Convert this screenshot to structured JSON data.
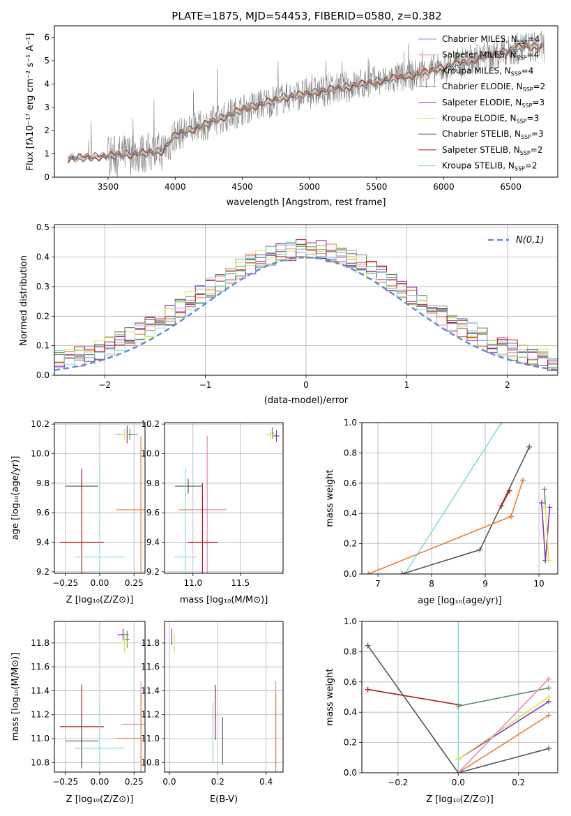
{
  "figure_title": "PLATE=1875, MJD=54453, FIBERID=0580, z=0.382",
  "colors": {
    "Chabrier MILES": "#7f93c8",
    "Salpeter MILES": "#e889b4",
    "Kroupa MILES": "#e67e30",
    "Chabrier ELODIE": "#5b8c5a",
    "Salpeter ELODIE": "#8e2fb5",
    "Kroupa ELODIE": "#d4e84a",
    "Chabrier STELIB": "#555555",
    "Salpeter STELIB": "#b21a1a",
    "Kroupa STELIB": "#85dada",
    "data": "#808080",
    "normal": "#5b8fd6"
  },
  "chart_data": [
    {
      "id": "spectrum",
      "type": "line",
      "xlabel": "wavelength [Angstrom, rest frame]",
      "ylabel": "Flux [f_λ 10^-17 erg cm^-2 s^-1 A^-1]",
      "xlim": [
        3100,
        6850
      ],
      "ylim": [
        0,
        6.5
      ],
      "xticks": [
        3500,
        4000,
        4500,
        5000,
        5500,
        6000,
        6500
      ],
      "yticks": [
        0,
        1,
        2,
        3,
        4,
        5,
        6
      ],
      "legend_position": "right",
      "legend": [
        {
          "label": "Chabrier MILES, N",
          "sub": "SSP",
          "tail": "=4",
          "model": "Chabrier MILES"
        },
        {
          "label": "Salpeter MILES, N",
          "sub": "SSP",
          "tail": "=4",
          "model": "Salpeter MILES"
        },
        {
          "label": "Kroupa MILES, N",
          "sub": "SSP",
          "tail": "=4",
          "model": "Kroupa MILES"
        },
        {
          "label": "Chabrier ELODIE, N",
          "sub": "SSP",
          "tail": "=2",
          "model": "Chabrier ELODIE"
        },
        {
          "label": "Salpeter ELODIE, N",
          "sub": "SSP",
          "tail": "=3",
          "model": "Salpeter ELODIE"
        },
        {
          "label": "Kroupa ELODIE, N",
          "sub": "SSP",
          "tail": "=3",
          "model": "Kroupa ELODIE"
        },
        {
          "label": "Chabrier STELIB, N",
          "sub": "SSP",
          "tail": "=3",
          "model": "Chabrier STELIB"
        },
        {
          "label": "Salpeter STELIB, N",
          "sub": "SSP",
          "tail": "=2",
          "model": "Salpeter STELIB"
        },
        {
          "label": "Kroupa STELIB, N",
          "sub": "SSP",
          "tail": "=2",
          "model": "Kroupa STELIB"
        }
      ],
      "continuum": {
        "x": [
          3200,
          3500,
          3700,
          3900,
          4000,
          4200,
          4500,
          4800,
          5000,
          5200,
          5500,
          5800,
          6000,
          6200,
          6400,
          6600,
          6750
        ],
        "y": [
          0.8,
          0.9,
          1.0,
          1.1,
          1.8,
          2.2,
          2.9,
          3.4,
          3.6,
          3.8,
          4.1,
          4.4,
          4.7,
          5.0,
          5.3,
          5.6,
          5.6
        ]
      }
    },
    {
      "id": "residuals",
      "type": "histogram",
      "xlabel": "(data-model)/error",
      "ylabel": "Normed distribution",
      "xlim": [
        -2.5,
        2.5
      ],
      "ylim": [
        0,
        0.51
      ],
      "xticks": [
        -2,
        -1,
        0,
        1,
        2
      ],
      "yticks": [
        0.0,
        0.1,
        0.2,
        0.3,
        0.4,
        0.5
      ],
      "legend_position": "upper right",
      "legend_label": "N(0,1)"
    },
    {
      "id": "age_vs_Z",
      "type": "scatter",
      "xlabel": "Z [log10(Z/Z⊙)]",
      "ylabel": "age  [log10(age/yr)]",
      "xlim": [
        -0.33,
        0.33
      ],
      "ylim": [
        9.19,
        10.21
      ],
      "xticks": [
        -0.25,
        0.0,
        0.25
      ],
      "yticks": [
        9.2,
        9.4,
        9.6,
        9.8,
        10.0,
        10.2
      ],
      "points": [
        {
          "model": "Chabrier MILES",
          "x": 0.2,
          "y": 10.13,
          "xerr": 0.08,
          "yerr": 0.03
        },
        {
          "model": "Salpeter ELODIE",
          "x": 0.2,
          "y": 10.13,
          "xerr": 0.05,
          "yerr": 0.06
        },
        {
          "model": "Chabrier ELODIE",
          "x": 0.22,
          "y": 10.13,
          "xerr": 0.02,
          "yerr": 0.04
        },
        {
          "model": "Kroupa ELODIE",
          "x": 0.18,
          "y": 10.13,
          "xerr": 0.03,
          "yerr": 0.04
        },
        {
          "model": "Chabrier STELIB",
          "x": -0.13,
          "y": 9.78,
          "xerr": 0.12,
          "yerr": 0.05
        },
        {
          "model": "Kroupa MILES",
          "x": 0.3,
          "y": 9.62,
          "xerr": 0.18,
          "yerr": 0.5
        },
        {
          "model": "Salpeter STELIB",
          "x": -0.13,
          "y": 9.4,
          "xerr": 0.16,
          "yerr": 0.5
        },
        {
          "model": "Kroupa STELIB",
          "x": 0.0,
          "y": 9.3,
          "xerr": 0.18,
          "yerr": 0.65
        }
      ]
    },
    {
      "id": "age_vs_mass",
      "type": "scatter",
      "xlabel": "mass [log10(M/M⊙)]",
      "xlim": [
        10.7,
        11.95
      ],
      "ylim": [
        9.19,
        10.21
      ],
      "xticks": [
        11.0,
        11.5
      ],
      "yticks": [
        9.2,
        9.4,
        9.6,
        9.8,
        10.0,
        10.2
      ],
      "points": [
        {
          "model": "Kroupa ELODIE",
          "x": 11.82,
          "y": 10.13,
          "xerr": 0.06,
          "yerr": 0.04
        },
        {
          "model": "Salpeter ELODIE",
          "x": 11.88,
          "y": 10.12,
          "xerr": 0.03,
          "yerr": 0.04
        },
        {
          "model": "Chabrier ELODIE",
          "x": 11.84,
          "y": 10.14,
          "xerr": 0.01,
          "yerr": 0.04
        },
        {
          "model": "Chabrier STELIB",
          "x": 10.95,
          "y": 9.78,
          "xerr": 0.14,
          "yerr": 0.05
        },
        {
          "model": "Kroupa MILES",
          "x": 11.1,
          "y": 9.62,
          "xerr": 0.25,
          "yerr": 0.05
        },
        {
          "model": "Salpeter MILES",
          "x": 11.15,
          "y": 9.62,
          "xerr": 0.2,
          "yerr": 0.5
        },
        {
          "model": "Salpeter STELIB",
          "x": 11.1,
          "y": 9.4,
          "xerr": 0.16,
          "yerr": 0.4
        },
        {
          "model": "Kroupa STELIB",
          "x": 10.92,
          "y": 9.3,
          "xerr": 0.12,
          "yerr": 0.6
        }
      ]
    },
    {
      "id": "weight_vs_age",
      "type": "line",
      "xlabel": "age  [log10(age/yr)]",
      "ylabel": "mass weight",
      "xlim": [
        6.7,
        10.35
      ],
      "ylim": [
        0.0,
        1.0
      ],
      "xticks": [
        7,
        8,
        9,
        10
      ],
      "yticks": [
        0.0,
        0.2,
        0.4,
        0.6,
        0.8,
        1.0
      ],
      "series": [
        {
          "model": "Kroupa STELIB",
          "x": [
            7.5,
            9.3
          ],
          "y": [
            0.0,
            1.0
          ]
        },
        {
          "model": "Chabrier STELIB",
          "x": [
            7.45,
            8.9,
            9.82
          ],
          "y": [
            0.0,
            0.16,
            0.84
          ]
        },
        {
          "model": "Kroupa MILES",
          "x": [
            6.82,
            9.48,
            9.7
          ],
          "y": [
            0.0,
            0.38,
            0.62
          ]
        },
        {
          "model": "Salpeter STELIB",
          "x": [
            9.3,
            9.45
          ],
          "y": [
            0.45,
            0.55
          ]
        },
        {
          "model": "Chabrier ELODIE",
          "x": [
            10.1,
            10.12
          ],
          "y": [
            0.56,
            0.44
          ]
        },
        {
          "model": "Salpeter ELODIE",
          "x": [
            10.05,
            10.12,
            10.2
          ],
          "y": [
            0.47,
            0.09,
            0.44
          ]
        },
        {
          "model": "Kroupa ELODIE",
          "x": [
            10.12,
            10.18
          ],
          "y": [
            0.44,
            0.09
          ]
        }
      ]
    },
    {
      "id": "mass_vs_Z",
      "type": "scatter",
      "xlabel": "Z [log10(Z/Z⊙)]",
      "ylabel": "mass [log10(M/M⊙)]",
      "xlim": [
        -0.33,
        0.33
      ],
      "ylim": [
        10.72,
        11.98
      ],
      "xticks": [
        -0.25,
        0.0,
        0.25
      ],
      "yticks": [
        10.8,
        11.0,
        11.2,
        11.4,
        11.6,
        11.8
      ],
      "points": [
        {
          "model": "Salpeter ELODIE",
          "x": 0.17,
          "y": 11.87,
          "xerr": 0.04,
          "yerr": 0.05
        },
        {
          "model": "Chabrier ELODIE",
          "x": 0.2,
          "y": 11.83,
          "xerr": 0.02,
          "yerr": 0.07
        },
        {
          "model": "Kroupa ELODIE",
          "x": 0.18,
          "y": 11.8,
          "xerr": 0.04,
          "yerr": 0.08
        },
        {
          "model": "Salpeter MILES",
          "x": 0.3,
          "y": 11.12,
          "xerr": 0.14,
          "yerr": 0.36
        },
        {
          "model": "Kroupa MILES",
          "x": 0.3,
          "y": 11.0,
          "xerr": 0.18,
          "yerr": 0.38
        },
        {
          "model": "Salpeter STELIB",
          "x": -0.13,
          "y": 11.1,
          "xerr": 0.16,
          "yerr": 0.35
        },
        {
          "model": "Chabrier STELIB",
          "x": -0.13,
          "y": 10.98,
          "xerr": 0.12,
          "yerr": 0.2
        },
        {
          "model": "Kroupa STELIB",
          "x": 0.0,
          "y": 10.92,
          "xerr": 0.18,
          "yerr": 0.4
        }
      ]
    },
    {
      "id": "mass_vs_ebv",
      "type": "scatter",
      "xlabel": "E(B-V)",
      "xlim": [
        -0.02,
        0.47
      ],
      "ylim": [
        10.72,
        11.98
      ],
      "xticks": [
        0.0,
        0.2,
        0.4
      ],
      "yticks": [
        10.8,
        11.0,
        11.2,
        11.4,
        11.6,
        11.8
      ],
      "points": [
        {
          "model": "Salpeter ELODIE",
          "x": 0.01,
          "y": 11.85,
          "yerr": 0.07
        },
        {
          "model": "Kroupa ELODIE",
          "x": 0.02,
          "y": 11.8,
          "yerr": 0.08
        },
        {
          "model": "Salpeter STELIB",
          "x": 0.19,
          "y": 11.22,
          "yerr": 0.23
        },
        {
          "model": "Kroupa STELIB",
          "x": 0.18,
          "y": 11.05,
          "yerr": 0.25
        },
        {
          "model": "Chabrier STELIB",
          "x": 0.22,
          "y": 10.98,
          "yerr": 0.2
        },
        {
          "model": "Salpeter MILES",
          "x": 0.44,
          "y": 11.12,
          "yerr": 0.36
        },
        {
          "model": "Kroupa MILES",
          "x": 0.44,
          "y": 11.0,
          "yerr": 0.38
        }
      ]
    },
    {
      "id": "weight_vs_Z",
      "type": "line",
      "xlabel": "Z [log10(Z/Z⊙)]",
      "ylabel": "mass weight",
      "xlim": [
        -0.32,
        0.33
      ],
      "ylim": [
        0.0,
        1.0
      ],
      "xticks": [
        -0.2,
        0.0,
        0.2
      ],
      "yticks": [
        0.0,
        0.2,
        0.4,
        0.6,
        0.8,
        1.0
      ],
      "series": [
        {
          "model": "Chabrier STELIB",
          "x": [
            -0.3,
            0.0,
            0.3
          ],
          "y": [
            0.84,
            0.0,
            0.16
          ]
        },
        {
          "model": "Salpeter STELIB",
          "x": [
            -0.3,
            0.0
          ],
          "y": [
            0.55,
            0.45
          ]
        },
        {
          "model": "Kroupa STELIB",
          "x": [
            0.0,
            0.0
          ],
          "y": [
            0.0,
            1.0
          ]
        },
        {
          "model": "Chabrier ELODIE",
          "x": [
            0.0,
            0.3
          ],
          "y": [
            0.44,
            0.56
          ]
        },
        {
          "model": "Salpeter ELODIE",
          "x": [
            0.0,
            0.3
          ],
          "y": [
            0.09,
            0.47
          ]
        },
        {
          "model": "Kroupa ELODIE",
          "x": [
            0.0,
            0.3
          ],
          "y": [
            0.09,
            0.5
          ]
        },
        {
          "model": "Kroupa MILES",
          "x": [
            0.0,
            0.3
          ],
          "y": [
            0.0,
            0.38
          ]
        },
        {
          "model": "Salpeter MILES",
          "x": [
            0.0,
            0.3
          ],
          "y": [
            0.0,
            0.62
          ]
        }
      ]
    }
  ]
}
